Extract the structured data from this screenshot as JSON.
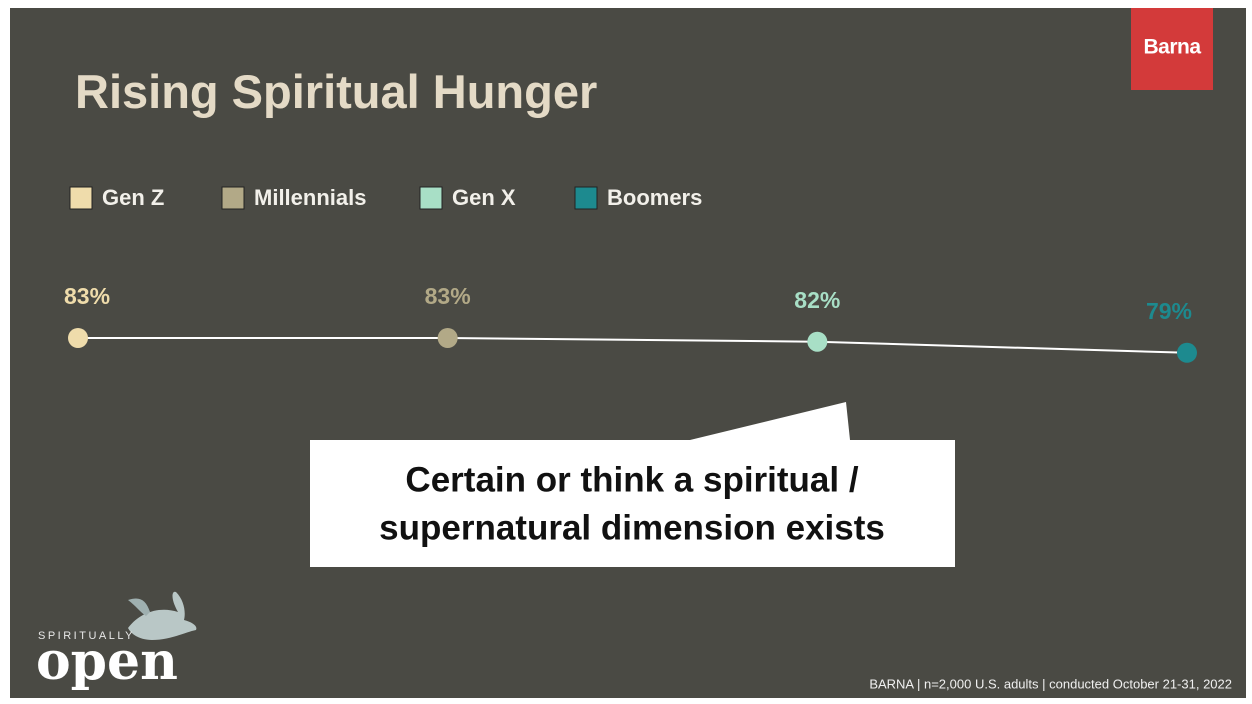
{
  "chart_data": {
    "type": "line",
    "title": "Rising Spiritual Hunger",
    "categories": [
      "Gen Z",
      "Millennials",
      "Gen X",
      "Boomers"
    ],
    "values": [
      83,
      83,
      82,
      79
    ],
    "value_labels": [
      "83%",
      "83%",
      "82%",
      "79%"
    ],
    "colors": [
      "#efdcab",
      "#b2a987",
      "#a8dfc6",
      "#1d8a8f"
    ],
    "line_color": "#ffffff",
    "legend": "top-left",
    "annotation": [
      "Certain or think a spiritual /",
      "supernatural dimension exists"
    ],
    "source": "BARNA   |  n=2,000 U.S. adults  |  conducted October 21-31, 2022"
  },
  "branding": {
    "logo": "Barna",
    "tagline_small": "SPIRITUALLY",
    "tagline": "open"
  }
}
